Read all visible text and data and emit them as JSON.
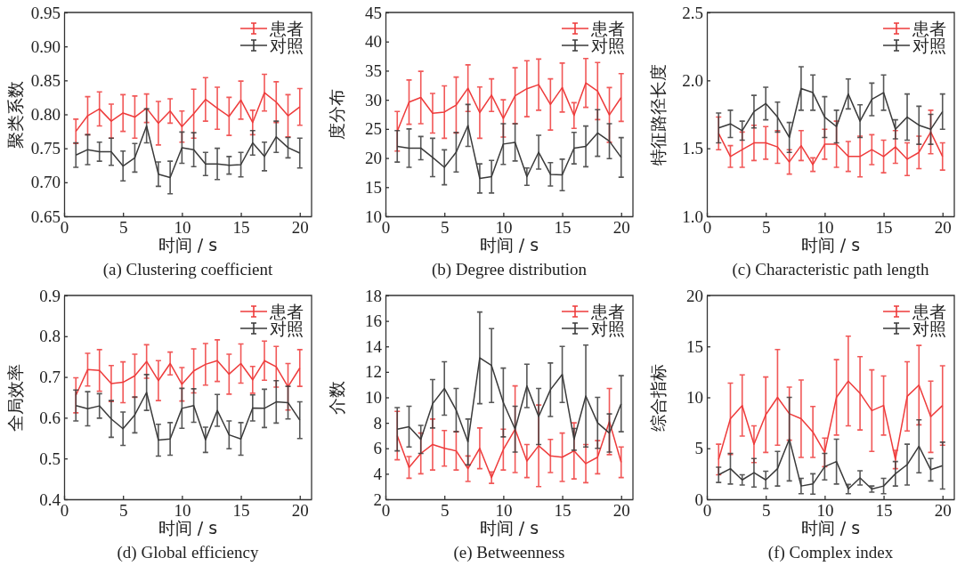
{
  "chart_data": [
    {
      "type": "line",
      "title": "(a) Clustering coefficient",
      "xlabel": "时间 / s",
      "ylabel": "聚类系数",
      "legend": "top right",
      "x": [
        1,
        2,
        3,
        4,
        5,
        6,
        7,
        8,
        9,
        10,
        11,
        12,
        13,
        14,
        15,
        16,
        17,
        18,
        19,
        20
      ],
      "xlim": [
        0,
        21
      ],
      "xticks": [
        0,
        5,
        10,
        15,
        20
      ],
      "ylim": [
        0.65,
        0.95
      ],
      "yticks": [
        0.65,
        {
          "value": 0.7,
          "label": "0.70"
        },
        0.75,
        {
          "value": 0.8,
          "label": "0.80"
        },
        0.85,
        {
          "value": 0.9,
          "label": "0.90"
        },
        0.95
      ],
      "series": [
        {
          "name": "患者",
          "color": "#ee3b3b",
          "values": [
            0.775,
            0.798,
            0.808,
            0.79,
            0.802,
            0.796,
            0.809,
            0.787,
            0.805,
            0.782,
            0.801,
            0.822,
            0.809,
            0.797,
            0.821,
            0.788,
            0.832,
            0.818,
            0.798,
            0.811
          ],
          "errors": [
            0.018,
            0.028,
            0.025,
            0.025,
            0.027,
            0.031,
            0.021,
            0.032,
            0.018,
            0.023,
            0.036,
            0.032,
            0.031,
            0.028,
            0.028,
            0.018,
            0.027,
            0.03,
            0.031,
            0.027
          ]
        },
        {
          "name": "对照",
          "color": "#3a3a3a",
          "values": [
            0.74,
            0.748,
            0.745,
            0.745,
            0.724,
            0.736,
            0.783,
            0.712,
            0.707,
            0.751,
            0.748,
            0.727,
            0.727,
            0.725,
            0.726,
            0.758,
            0.738,
            0.767,
            0.751,
            0.743
          ],
          "errors": [
            0.018,
            0.022,
            0.014,
            0.02,
            0.022,
            0.021,
            0.025,
            0.018,
            0.024,
            0.023,
            0.025,
            0.017,
            0.023,
            0.013,
            0.018,
            0.018,
            0.021,
            0.023,
            0.015,
            0.022
          ]
        }
      ]
    },
    {
      "type": "line",
      "title": "(b) Degree distribution",
      "xlabel": "时间 / s",
      "ylabel": "度分布",
      "legend": "top right",
      "x": [
        1,
        2,
        3,
        4,
        5,
        6,
        7,
        8,
        9,
        10,
        11,
        12,
        13,
        14,
        15,
        16,
        17,
        18,
        19,
        20
      ],
      "xlim": [
        0,
        21
      ],
      "xticks": [
        0,
        5,
        10,
        15,
        20
      ],
      "ylim": [
        10,
        45
      ],
      "yticks": [
        10,
        15,
        20,
        25,
        30,
        35,
        40,
        45
      ],
      "series": [
        {
          "name": "患者",
          "color": "#ee3b3b",
          "values": [
            24.6,
            29.6,
            30.4,
            27.7,
            27.9,
            29.1,
            32,
            27.8,
            30.8,
            26.8,
            30.7,
            31.9,
            32.6,
            29.2,
            32.1,
            27.3,
            32.9,
            31.5,
            27.4,
            30.4
          ],
          "errors": [
            3.4,
            3.8,
            4.5,
            3.4,
            4.5,
            4.8,
            4,
            4.4,
            2.8,
            3.2,
            4.8,
            4.8,
            4.4,
            4.4,
            4.2,
            2.2,
            4.2,
            4.9,
            4.7,
            4.1
          ]
        },
        {
          "name": "对照",
          "color": "#3a3a3a",
          "values": [
            22,
            21.7,
            21.7,
            20.1,
            18.4,
            21,
            25.6,
            16.5,
            16.8,
            22.4,
            22.7,
            16.8,
            21,
            17.2,
            17.1,
            21.7,
            22,
            24.3,
            22.9,
            20.1
          ],
          "errors": [
            2.7,
            3.3,
            2,
            3.3,
            3,
            3.4,
            3.6,
            2.5,
            2.8,
            3.5,
            3.2,
            1.5,
            2.9,
            2,
            2.7,
            2.7,
            3.5,
            4,
            3,
            3.4
          ]
        }
      ]
    },
    {
      "type": "line",
      "title": "(c) Characteristic path length",
      "xlabel": "时间 / s",
      "ylabel": "特征路径长度",
      "legend": "top right",
      "x": [
        1,
        2,
        3,
        4,
        5,
        6,
        7,
        8,
        9,
        10,
        11,
        12,
        13,
        14,
        15,
        16,
        17,
        18,
        19,
        20
      ],
      "xlim": [
        0,
        21
      ],
      "xticks": [
        0,
        5,
        10,
        15,
        20
      ],
      "ylim": [
        1,
        2.5
      ],
      "yticks": [
        {
          "value": 1,
          "label": "1.0"
        },
        1.5,
        {
          "value": 2,
          "label": "2.0"
        },
        2.5
      ],
      "series": [
        {
          "name": "患者",
          "color": "#ee3b3b",
          "values": [
            1.61,
            1.44,
            1.49,
            1.54,
            1.54,
            1.51,
            1.4,
            1.52,
            1.38,
            1.53,
            1.53,
            1.44,
            1.44,
            1.49,
            1.44,
            1.51,
            1.42,
            1.47,
            1.62,
            1.44
          ],
          "errors": [
            0.12,
            0.08,
            0.13,
            0.13,
            0.12,
            0.12,
            0.09,
            0.11,
            0.05,
            0.11,
            0.17,
            0.11,
            0.15,
            0.11,
            0.12,
            0.12,
            0.12,
            0.12,
            0.16,
            0.1
          ]
        },
        {
          "name": "对照",
          "color": "#3a3a3a",
          "values": [
            1.65,
            1.68,
            1.63,
            1.77,
            1.83,
            1.73,
            1.58,
            1.94,
            1.91,
            1.73,
            1.66,
            1.9,
            1.7,
            1.86,
            1.91,
            1.64,
            1.73,
            1.67,
            1.64,
            1.77
          ],
          "errors": [
            0.11,
            0.1,
            0.07,
            0.12,
            0.12,
            0.11,
            0.11,
            0.16,
            0.13,
            0.15,
            0.12,
            0.11,
            0.12,
            0.12,
            0.13,
            0.07,
            0.17,
            0.14,
            0.11,
            0.13
          ]
        }
      ]
    },
    {
      "type": "line",
      "title": "(d) Global efficiency",
      "xlabel": "时间 / s",
      "ylabel": "全局效率",
      "legend": "top right",
      "x": [
        1,
        2,
        3,
        4,
        5,
        6,
        7,
        8,
        9,
        10,
        11,
        12,
        13,
        14,
        15,
        16,
        17,
        18,
        19,
        20
      ],
      "xlim": [
        0,
        21
      ],
      "xticks": [
        0,
        5,
        10,
        15,
        20
      ],
      "ylim": [
        0.4,
        0.9
      ],
      "yticks": [
        0.4,
        0.5,
        0.6,
        0.7,
        0.8,
        0.9
      ],
      "series": [
        {
          "name": "患者",
          "color": "#ee3b3b",
          "values": [
            0.655,
            0.718,
            0.716,
            0.684,
            0.687,
            0.703,
            0.738,
            0.691,
            0.733,
            0.682,
            0.715,
            0.731,
            0.74,
            0.707,
            0.733,
            0.693,
            0.74,
            0.725,
            0.676,
            0.722
          ],
          "errors": [
            0.043,
            0.04,
            0.051,
            0.044,
            0.05,
            0.053,
            0.041,
            0.049,
            0.028,
            0.041,
            0.054,
            0.051,
            0.051,
            0.049,
            0.048,
            0.033,
            0.048,
            0.05,
            0.057,
            0.045
          ]
        },
        {
          "name": "对照",
          "color": "#3a3a3a",
          "values": [
            0.63,
            0.622,
            0.629,
            0.597,
            0.573,
            0.607,
            0.662,
            0.545,
            0.548,
            0.623,
            0.63,
            0.546,
            0.618,
            0.558,
            0.548,
            0.624,
            0.623,
            0.639,
            0.637,
            0.594
          ],
          "errors": [
            0.038,
            0.042,
            0.03,
            0.045,
            0.041,
            0.044,
            0.044,
            0.039,
            0.04,
            0.049,
            0.041,
            0.031,
            0.039,
            0.034,
            0.04,
            0.032,
            0.047,
            0.052,
            0.04,
            0.045
          ]
        }
      ]
    },
    {
      "type": "line",
      "title": "(e) Betweenness",
      "xlabel": "时间 / s",
      "ylabel": "介数",
      "legend": "top right",
      "x": [
        1,
        2,
        3,
        4,
        5,
        6,
        7,
        8,
        9,
        10,
        11,
        12,
        13,
        14,
        15,
        16,
        17,
        18,
        19,
        20
      ],
      "xlim": [
        0,
        21
      ],
      "xticks": [
        0,
        5,
        10,
        15,
        20
      ],
      "ylim": [
        2,
        18
      ],
      "yticks": [
        2,
        4,
        6,
        8,
        10,
        12,
        14,
        16,
        18
      ],
      "series": [
        {
          "name": "患者",
          "color": "#ee3b3b",
          "values": [
            7,
            4.5,
            5.6,
            6.3,
            6,
            5.8,
            4.4,
            6,
            3.7,
            5.9,
            7.5,
            5,
            6.2,
            5.4,
            5.3,
            5.8,
            4.8,
            5.3,
            8.1,
            4.9
          ],
          "errors": [
            1.9,
            0.85,
            1.6,
            2,
            1.4,
            1.5,
            1,
            1.6,
            0.45,
            1.6,
            3.4,
            1.3,
            3.2,
            1.3,
            1.9,
            2.2,
            1.5,
            1.3,
            2.6,
            1.2
          ]
        },
        {
          "name": "对照",
          "color": "#3a3a3a",
          "values": [
            7.5,
            7.7,
            6.7,
            9.5,
            10.7,
            9,
            6.5,
            13.1,
            12.5,
            9.6,
            7.5,
            10.9,
            8.5,
            10.6,
            11.8,
            6.7,
            10.1,
            8,
            7.2,
            9.5
          ],
          "errors": [
            1.7,
            1.6,
            1.1,
            1.9,
            2.1,
            1.7,
            1.8,
            3.6,
            2.9,
            2.7,
            1.8,
            1.7,
            2.2,
            2.1,
            2.2,
            0.85,
            4,
            2,
            1.5,
            2.2
          ]
        }
      ]
    },
    {
      "type": "line",
      "title": "(f) Complex index",
      "xlabel": "时间 / s",
      "ylabel": "综合指标",
      "legend": "top right",
      "x": [
        1,
        2,
        3,
        4,
        5,
        6,
        7,
        8,
        9,
        10,
        11,
        12,
        13,
        14,
        15,
        16,
        17,
        18,
        19,
        20
      ],
      "xlim": [
        0,
        21
      ],
      "xticks": [
        0,
        5,
        10,
        15,
        20
      ],
      "ylim": [
        0,
        20
      ],
      "yticks": [
        0,
        5,
        10,
        15,
        20
      ],
      "series": [
        {
          "name": "患者",
          "color": "#ee3b3b",
          "values": [
            3.9,
            7.9,
            9.2,
            5.4,
            8.3,
            10,
            8.4,
            7.9,
            6.6,
            4.6,
            10,
            11.6,
            10.4,
            8.7,
            9.2,
            3.9,
            10.1,
            11.2,
            8.1,
            9.2
          ],
          "errors": [
            1.5,
            3.5,
            3,
            1.8,
            3.7,
            4.7,
            2.6,
            3.8,
            2.5,
            1.4,
            3.7,
            4.4,
            3.6,
            4,
            2.9,
            0.9,
            3.4,
            3.9,
            3.5,
            3.9
          ]
        },
        {
          "name": "对照",
          "color": "#3a3a3a",
          "values": [
            2.4,
            3,
            1.9,
            2.6,
            1.9,
            3,
            5.9,
            1.3,
            1.5,
            3.2,
            3.7,
            1,
            2.1,
            1,
            1.3,
            2.5,
            3.4,
            5.2,
            2.9,
            3.3
          ],
          "errors": [
            0.75,
            1.5,
            0.5,
            1.4,
            0.85,
            1.7,
            4.1,
            0.75,
            1,
            1.3,
            2.2,
            0.45,
            0.7,
            0.3,
            0.75,
            1.2,
            2,
            2.6,
            1.1,
            2.3
          ]
        }
      ]
    }
  ]
}
